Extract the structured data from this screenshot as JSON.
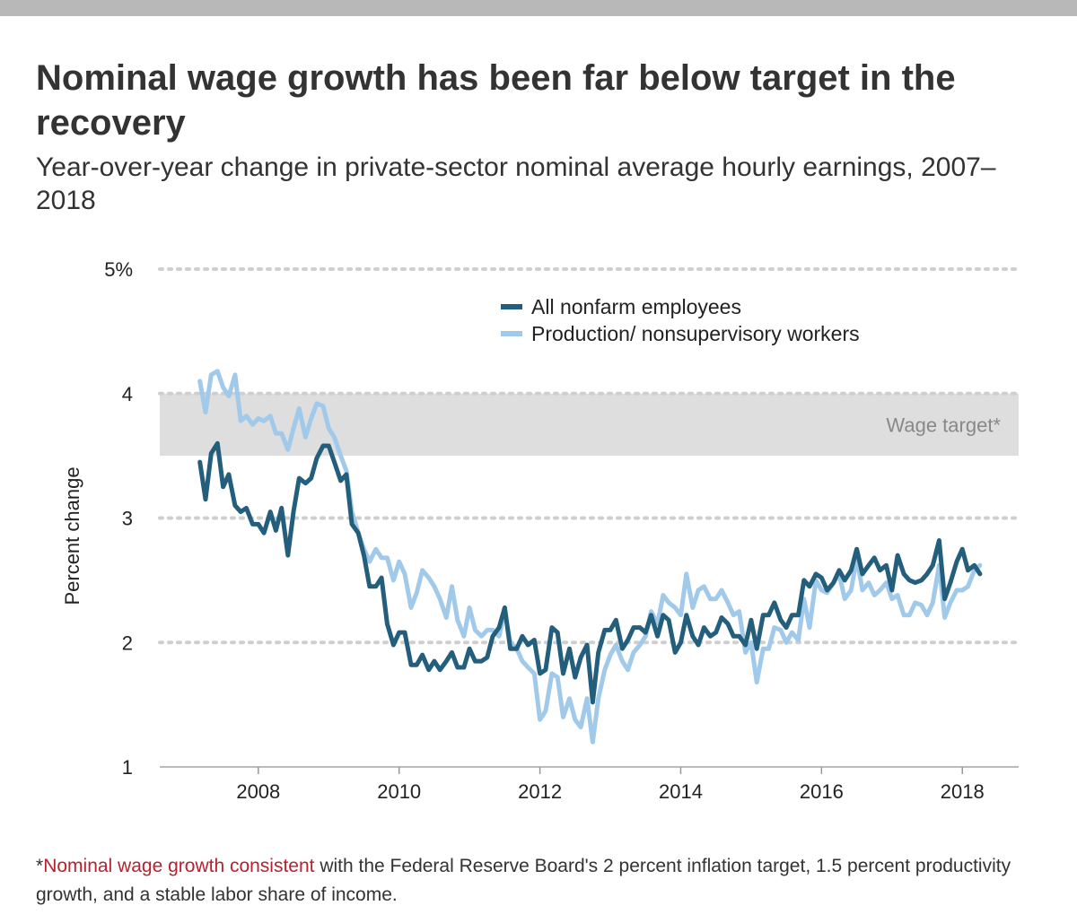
{
  "title": "Nominal wage growth has been far below target in the recovery",
  "subtitle": "Year-over-year change in private-sector nominal average hourly earnings, 2007–2018",
  "footnote": {
    "asterisk": "*",
    "highlight": "Nominal wage growth consistent",
    "rest": " with the Federal Reserve Board's 2 percent inflation target, 1.5 percent productivity growth, and a stable labor share of income."
  },
  "colors": {
    "all_nonfarm": "#235f7d",
    "production": "#a1c9ea",
    "target_band": "#dedede",
    "footnote_highlight": "#b8212f"
  },
  "chart_data": {
    "type": "line",
    "title": "Nominal wage growth has been far below target in the recovery",
    "subtitle": "Year-over-year change in private-sector nominal average hourly earnings, 2007–2018",
    "ylabel": "Percent change",
    "xlabel": "",
    "xlim": [
      2006.6,
      2018.8
    ],
    "ylim": [
      1,
      5
    ],
    "x_ticks": [
      2008,
      2010,
      2012,
      2014,
      2016,
      2018
    ],
    "x_tick_labels": [
      "2008",
      "2010",
      "2012",
      "2014",
      "2016",
      "2018"
    ],
    "y_ticks": [
      1,
      2,
      3,
      4,
      5
    ],
    "y_tick_labels": [
      "1",
      "2",
      "3",
      "4",
      "5%"
    ],
    "grid": "horizontal dotted",
    "legend_position": "top-center",
    "band": {
      "label": "Wage target*",
      "y0": 3.5,
      "y1": 4.0
    },
    "series": [
      {
        "name": "All nonfarm employees",
        "color": "#235f7d",
        "points": [
          [
            2007.17,
            3.45
          ],
          [
            2007.25,
            3.15
          ],
          [
            2007.33,
            3.52
          ],
          [
            2007.42,
            3.6
          ],
          [
            2007.5,
            3.25
          ],
          [
            2007.58,
            3.35
          ],
          [
            2007.67,
            3.1
          ],
          [
            2007.75,
            3.05
          ],
          [
            2007.83,
            3.08
          ],
          [
            2007.92,
            2.95
          ],
          [
            2008.0,
            2.95
          ],
          [
            2008.08,
            2.88
          ],
          [
            2008.17,
            3.05
          ],
          [
            2008.25,
            2.9
          ],
          [
            2008.33,
            3.08
          ],
          [
            2008.42,
            2.7
          ],
          [
            2008.5,
            3.05
          ],
          [
            2008.58,
            3.32
          ],
          [
            2008.67,
            3.28
          ],
          [
            2008.75,
            3.32
          ],
          [
            2008.83,
            3.48
          ],
          [
            2008.92,
            3.58
          ],
          [
            2009.0,
            3.58
          ],
          [
            2009.08,
            3.45
          ],
          [
            2009.17,
            3.3
          ],
          [
            2009.25,
            3.35
          ],
          [
            2009.33,
            2.95
          ],
          [
            2009.42,
            2.88
          ],
          [
            2009.5,
            2.7
          ],
          [
            2009.58,
            2.45
          ],
          [
            2009.67,
            2.45
          ],
          [
            2009.75,
            2.52
          ],
          [
            2009.83,
            2.15
          ],
          [
            2009.92,
            1.98
          ],
          [
            2010.0,
            2.08
          ],
          [
            2010.08,
            2.08
          ],
          [
            2010.17,
            1.82
          ],
          [
            2010.25,
            1.82
          ],
          [
            2010.33,
            1.9
          ],
          [
            2010.42,
            1.78
          ],
          [
            2010.5,
            1.85
          ],
          [
            2010.58,
            1.78
          ],
          [
            2010.67,
            1.85
          ],
          [
            2010.75,
            1.92
          ],
          [
            2010.83,
            1.8
          ],
          [
            2010.92,
            1.8
          ],
          [
            2011.0,
            1.95
          ],
          [
            2011.08,
            1.85
          ],
          [
            2011.17,
            1.85
          ],
          [
            2011.25,
            1.88
          ],
          [
            2011.33,
            2.05
          ],
          [
            2011.42,
            2.12
          ],
          [
            2011.5,
            2.28
          ],
          [
            2011.58,
            1.95
          ],
          [
            2011.67,
            1.95
          ],
          [
            2011.75,
            2.05
          ],
          [
            2011.83,
            1.98
          ],
          [
            2011.92,
            2.02
          ],
          [
            2012.0,
            1.75
          ],
          [
            2012.08,
            1.78
          ],
          [
            2012.17,
            2.12
          ],
          [
            2012.25,
            2.08
          ],
          [
            2012.33,
            1.75
          ],
          [
            2012.42,
            1.95
          ],
          [
            2012.5,
            1.72
          ],
          [
            2012.58,
            1.88
          ],
          [
            2012.67,
            1.98
          ],
          [
            2012.75,
            1.52
          ],
          [
            2012.83,
            1.92
          ],
          [
            2012.92,
            2.1
          ],
          [
            2013.0,
            2.1
          ],
          [
            2013.08,
            2.18
          ],
          [
            2013.17,
            1.95
          ],
          [
            2013.25,
            2.02
          ],
          [
            2013.33,
            2.12
          ],
          [
            2013.42,
            2.12
          ],
          [
            2013.5,
            2.08
          ],
          [
            2013.58,
            2.22
          ],
          [
            2013.67,
            2.05
          ],
          [
            2013.75,
            2.22
          ],
          [
            2013.83,
            2.18
          ],
          [
            2013.92,
            1.92
          ],
          [
            2014.0,
            2.0
          ],
          [
            2014.08,
            2.22
          ],
          [
            2014.17,
            2.05
          ],
          [
            2014.25,
            1.98
          ],
          [
            2014.33,
            2.12
          ],
          [
            2014.42,
            2.05
          ],
          [
            2014.5,
            2.08
          ],
          [
            2014.58,
            2.2
          ],
          [
            2014.67,
            2.15
          ],
          [
            2014.75,
            2.05
          ],
          [
            2014.83,
            2.05
          ],
          [
            2014.92,
            1.98
          ],
          [
            2015.0,
            2.18
          ],
          [
            2015.08,
            1.95
          ],
          [
            2015.17,
            2.22
          ],
          [
            2015.25,
            2.22
          ],
          [
            2015.33,
            2.32
          ],
          [
            2015.42,
            2.18
          ],
          [
            2015.5,
            2.12
          ],
          [
            2015.58,
            2.22
          ],
          [
            2015.67,
            2.22
          ],
          [
            2015.75,
            2.5
          ],
          [
            2015.83,
            2.45
          ],
          [
            2015.92,
            2.55
          ],
          [
            2016.0,
            2.52
          ],
          [
            2016.08,
            2.42
          ],
          [
            2016.17,
            2.48
          ],
          [
            2016.25,
            2.58
          ],
          [
            2016.33,
            2.5
          ],
          [
            2016.42,
            2.58
          ],
          [
            2016.5,
            2.75
          ],
          [
            2016.58,
            2.55
          ],
          [
            2016.67,
            2.62
          ],
          [
            2016.75,
            2.68
          ],
          [
            2016.83,
            2.58
          ],
          [
            2016.92,
            2.62
          ],
          [
            2017.0,
            2.42
          ],
          [
            2017.08,
            2.7
          ],
          [
            2017.17,
            2.55
          ],
          [
            2017.25,
            2.5
          ],
          [
            2017.33,
            2.48
          ],
          [
            2017.42,
            2.5
          ],
          [
            2017.5,
            2.55
          ],
          [
            2017.58,
            2.62
          ],
          [
            2017.67,
            2.82
          ],
          [
            2017.75,
            2.35
          ],
          [
            2017.83,
            2.48
          ],
          [
            2017.92,
            2.65
          ],
          [
            2018.0,
            2.75
          ],
          [
            2018.08,
            2.58
          ],
          [
            2018.17,
            2.62
          ],
          [
            2018.25,
            2.55
          ]
        ]
      },
      {
        "name": "Production/ nonsupervisory workers",
        "color": "#a1c9ea",
        "points": [
          [
            2007.17,
            4.1
          ],
          [
            2007.25,
            3.85
          ],
          [
            2007.33,
            4.15
          ],
          [
            2007.42,
            4.18
          ],
          [
            2007.5,
            4.05
          ],
          [
            2007.58,
            3.98
          ],
          [
            2007.67,
            4.15
          ],
          [
            2007.75,
            3.78
          ],
          [
            2007.83,
            3.82
          ],
          [
            2007.92,
            3.75
          ],
          [
            2008.0,
            3.8
          ],
          [
            2008.08,
            3.78
          ],
          [
            2008.17,
            3.82
          ],
          [
            2008.25,
            3.68
          ],
          [
            2008.33,
            3.68
          ],
          [
            2008.42,
            3.55
          ],
          [
            2008.5,
            3.72
          ],
          [
            2008.58,
            3.88
          ],
          [
            2008.67,
            3.65
          ],
          [
            2008.75,
            3.8
          ],
          [
            2008.83,
            3.92
          ],
          [
            2008.92,
            3.9
          ],
          [
            2009.0,
            3.72
          ],
          [
            2009.08,
            3.65
          ],
          [
            2009.17,
            3.5
          ],
          [
            2009.25,
            3.38
          ],
          [
            2009.33,
            3.05
          ],
          [
            2009.42,
            2.88
          ],
          [
            2009.5,
            2.75
          ],
          [
            2009.58,
            2.65
          ],
          [
            2009.67,
            2.75
          ],
          [
            2009.75,
            2.68
          ],
          [
            2009.83,
            2.68
          ],
          [
            2009.92,
            2.5
          ],
          [
            2010.0,
            2.65
          ],
          [
            2010.08,
            2.55
          ],
          [
            2010.17,
            2.28
          ],
          [
            2010.25,
            2.4
          ],
          [
            2010.33,
            2.58
          ],
          [
            2010.42,
            2.52
          ],
          [
            2010.5,
            2.45
          ],
          [
            2010.58,
            2.35
          ],
          [
            2010.67,
            2.2
          ],
          [
            2010.75,
            2.45
          ],
          [
            2010.83,
            2.18
          ],
          [
            2010.92,
            2.05
          ],
          [
            2011.0,
            2.28
          ],
          [
            2011.08,
            2.1
          ],
          [
            2011.17,
            2.05
          ],
          [
            2011.25,
            2.1
          ],
          [
            2011.33,
            2.1
          ],
          [
            2011.42,
            2.05
          ],
          [
            2011.5,
            2.25
          ],
          [
            2011.58,
            2.0
          ],
          [
            2011.67,
            1.95
          ],
          [
            2011.75,
            1.85
          ],
          [
            2011.83,
            1.8
          ],
          [
            2011.92,
            1.75
          ],
          [
            2012.0,
            1.38
          ],
          [
            2012.08,
            1.45
          ],
          [
            2012.17,
            1.75
          ],
          [
            2012.25,
            1.72
          ],
          [
            2012.33,
            1.4
          ],
          [
            2012.42,
            1.55
          ],
          [
            2012.5,
            1.38
          ],
          [
            2012.58,
            1.32
          ],
          [
            2012.67,
            1.55
          ],
          [
            2012.75,
            1.2
          ],
          [
            2012.83,
            1.55
          ],
          [
            2012.92,
            1.78
          ],
          [
            2013.0,
            1.9
          ],
          [
            2013.08,
            1.98
          ],
          [
            2013.17,
            1.85
          ],
          [
            2013.25,
            1.78
          ],
          [
            2013.33,
            1.92
          ],
          [
            2013.42,
            1.98
          ],
          [
            2013.5,
            2.05
          ],
          [
            2013.58,
            2.25
          ],
          [
            2013.67,
            2.15
          ],
          [
            2013.75,
            2.38
          ],
          [
            2013.83,
            2.32
          ],
          [
            2013.92,
            2.28
          ],
          [
            2014.0,
            2.22
          ],
          [
            2014.08,
            2.55
          ],
          [
            2014.17,
            2.28
          ],
          [
            2014.25,
            2.42
          ],
          [
            2014.33,
            2.45
          ],
          [
            2014.42,
            2.35
          ],
          [
            2014.5,
            2.35
          ],
          [
            2014.58,
            2.42
          ],
          [
            2014.67,
            2.32
          ],
          [
            2014.75,
            2.22
          ],
          [
            2014.83,
            2.25
          ],
          [
            2014.92,
            1.92
          ],
          [
            2015.0,
            2.0
          ],
          [
            2015.08,
            1.68
          ],
          [
            2015.17,
            1.95
          ],
          [
            2015.25,
            1.95
          ],
          [
            2015.33,
            2.12
          ],
          [
            2015.42,
            2.1
          ],
          [
            2015.5,
            2.0
          ],
          [
            2015.58,
            2.08
          ],
          [
            2015.67,
            2.02
          ],
          [
            2015.75,
            2.35
          ],
          [
            2015.83,
            2.12
          ],
          [
            2015.92,
            2.5
          ],
          [
            2016.0,
            2.42
          ],
          [
            2016.08,
            2.4
          ],
          [
            2016.17,
            2.48
          ],
          [
            2016.25,
            2.55
          ],
          [
            2016.33,
            2.35
          ],
          [
            2016.42,
            2.42
          ],
          [
            2016.5,
            2.68
          ],
          [
            2016.58,
            2.42
          ],
          [
            2016.67,
            2.48
          ],
          [
            2016.75,
            2.38
          ],
          [
            2016.83,
            2.42
          ],
          [
            2016.92,
            2.48
          ],
          [
            2017.0,
            2.35
          ],
          [
            2017.08,
            2.38
          ],
          [
            2017.17,
            2.22
          ],
          [
            2017.25,
            2.22
          ],
          [
            2017.33,
            2.32
          ],
          [
            2017.42,
            2.3
          ],
          [
            2017.5,
            2.22
          ],
          [
            2017.58,
            2.32
          ],
          [
            2017.67,
            2.62
          ],
          [
            2017.75,
            2.2
          ],
          [
            2017.83,
            2.32
          ],
          [
            2017.92,
            2.42
          ],
          [
            2018.0,
            2.42
          ],
          [
            2018.08,
            2.45
          ],
          [
            2018.17,
            2.58
          ],
          [
            2018.25,
            2.62
          ]
        ]
      }
    ]
  }
}
